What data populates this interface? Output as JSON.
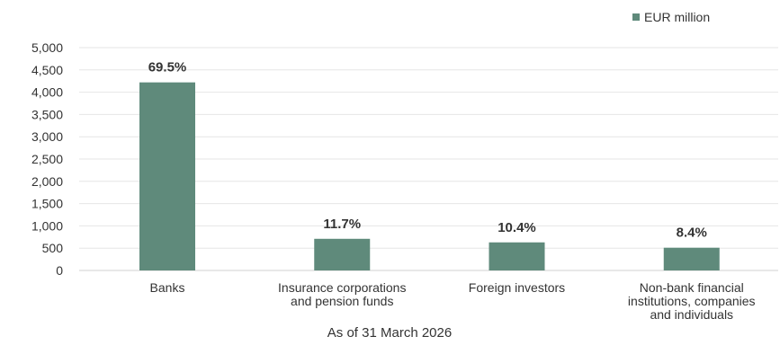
{
  "chart_data": {
    "type": "bar",
    "categories": [
      [
        "Banks"
      ],
      [
        "Insurance corporations",
        "and pension funds"
      ],
      [
        "Foreign investors"
      ],
      [
        "Non-bank financial",
        "institutions, companies",
        "and individuals"
      ]
    ],
    "series": [
      {
        "name": "EUR million",
        "values": [
          4220,
          710,
          630,
          510
        ],
        "data_labels": [
          "69.5%",
          "11.7%",
          "10.4%",
          "8.4%"
        ],
        "color": "#5f8a7b"
      }
    ],
    "y_ticks": [
      "0",
      "500",
      "1,000",
      "1,500",
      "2,000",
      "2,500",
      "3,000",
      "3,500",
      "4,000",
      "4,500",
      "5,000"
    ],
    "ylim": [
      0,
      5000
    ],
    "xlabel": "As of 31 March 2026",
    "grid": true,
    "legend_position": "top-right",
    "gridline_color": "#e6e6e6"
  }
}
